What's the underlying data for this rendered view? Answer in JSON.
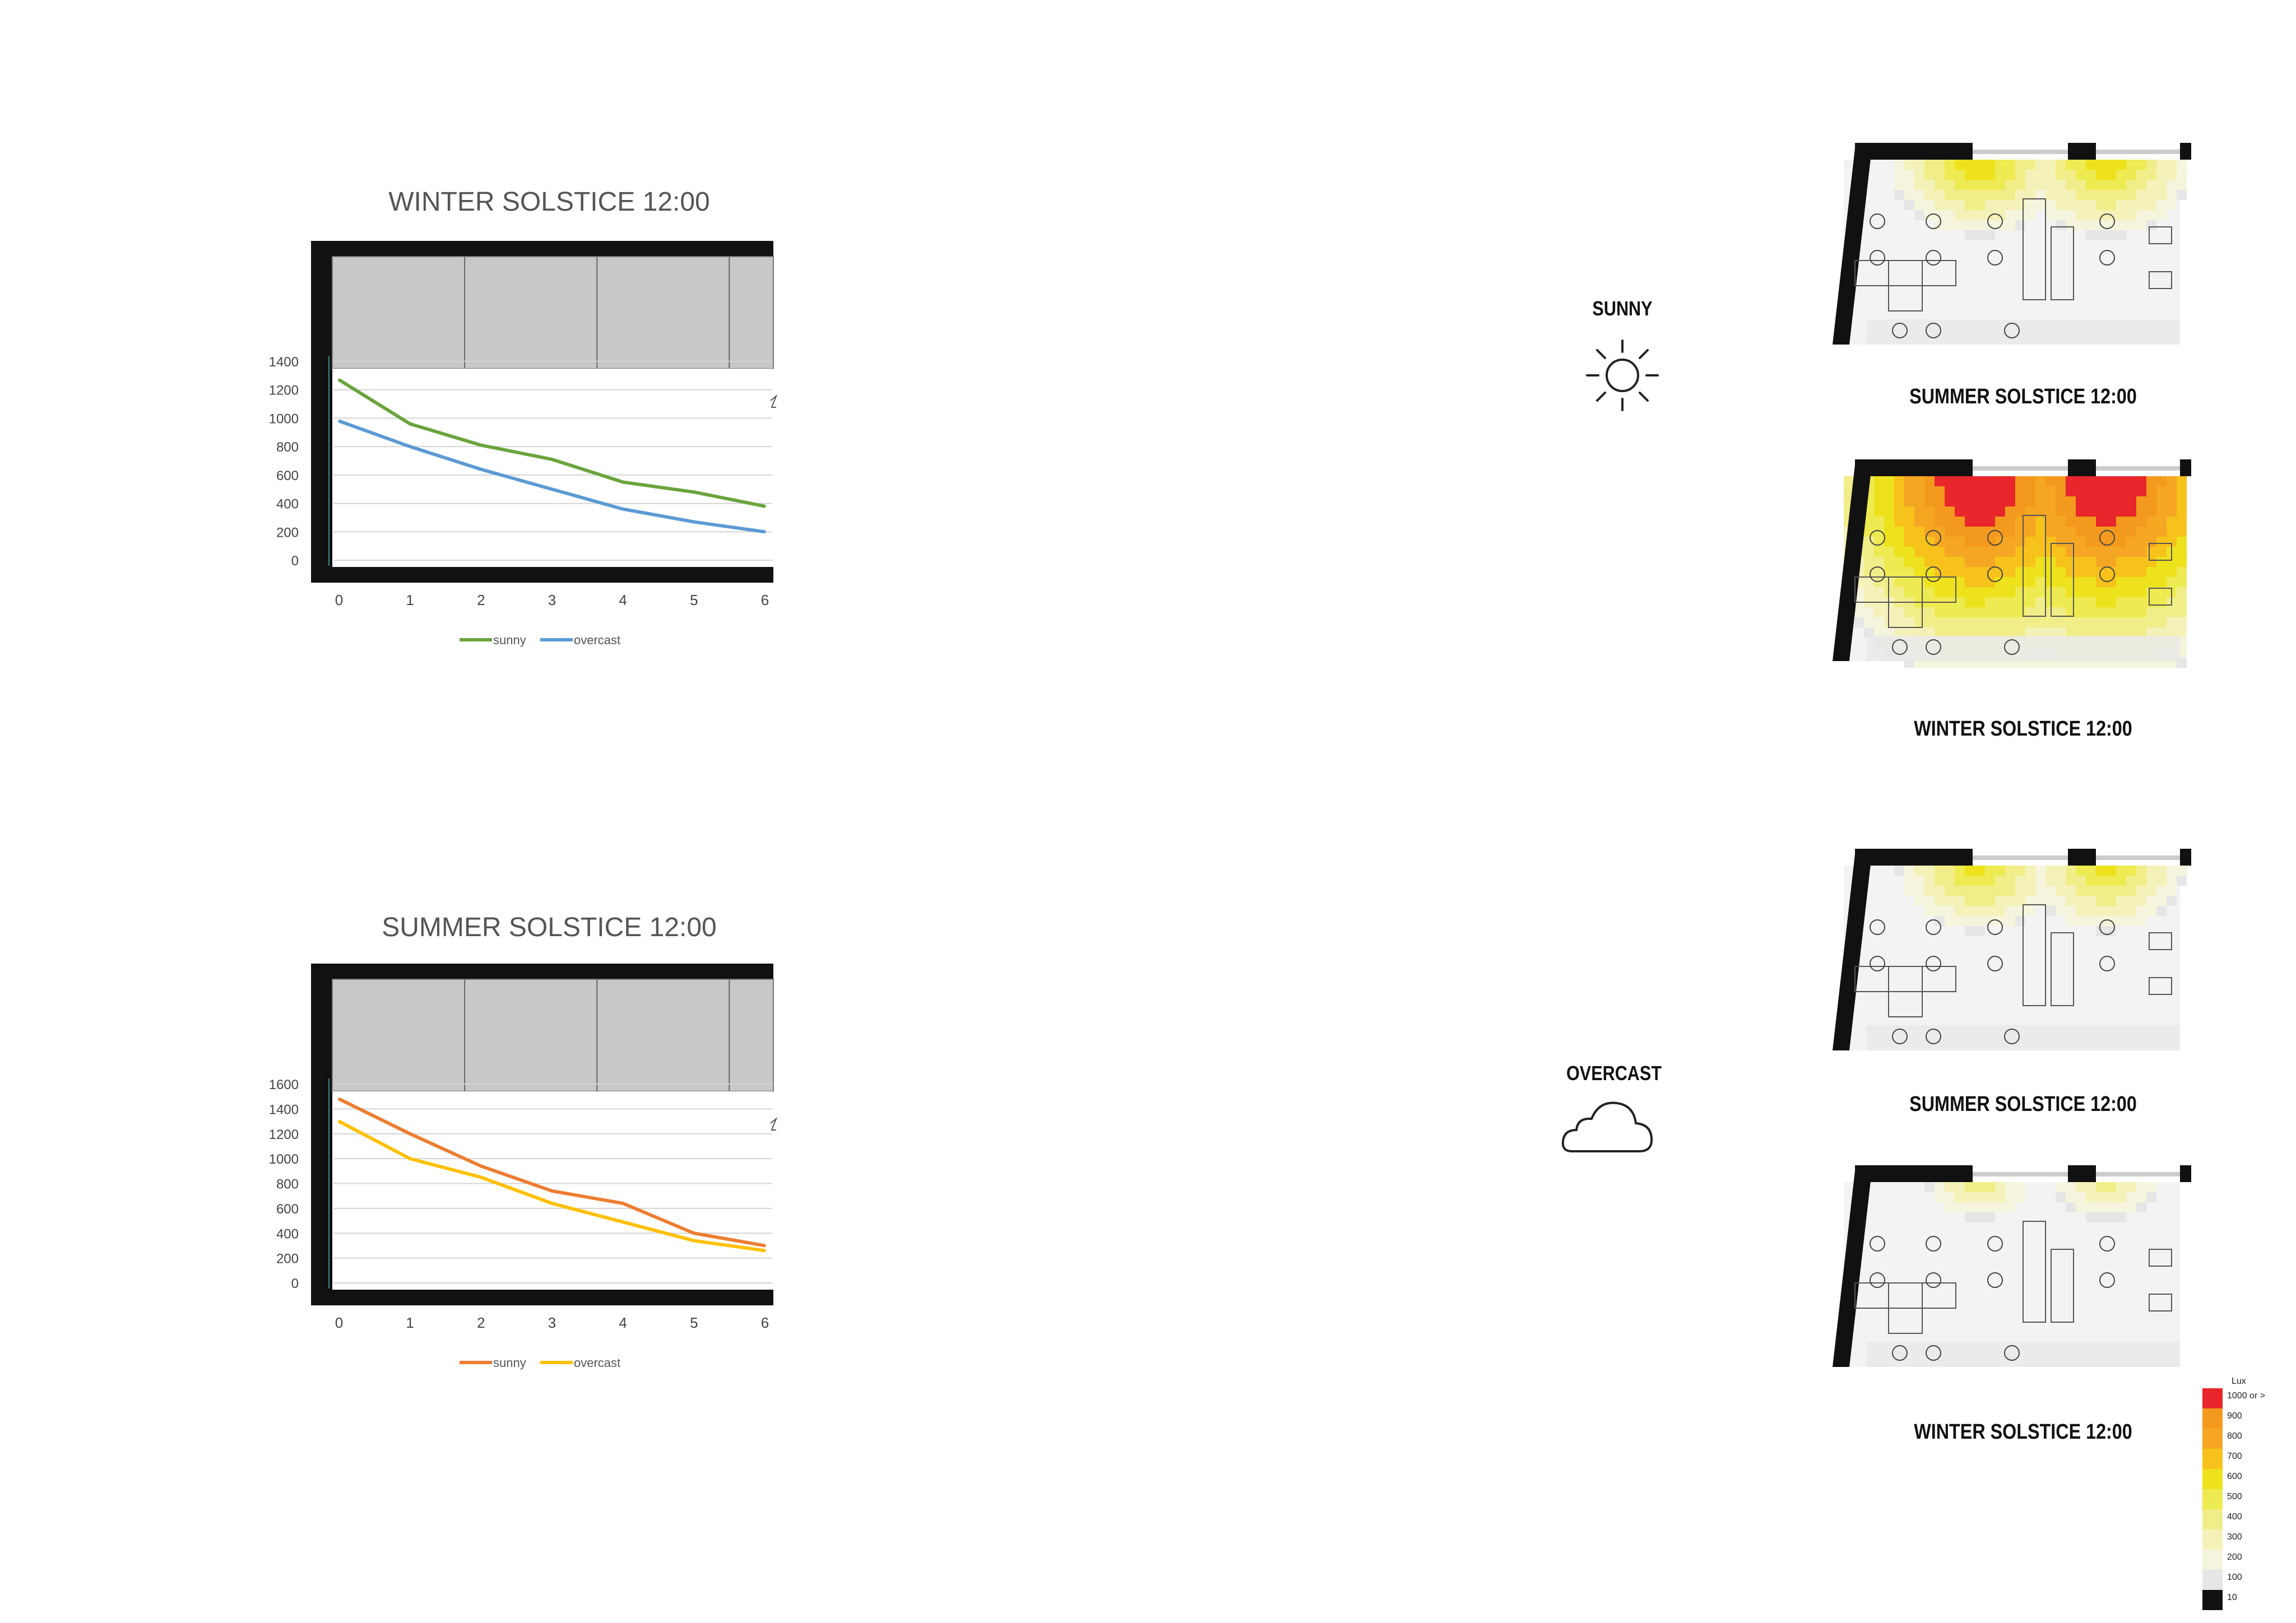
{
  "colors": {
    "sunny_winter": "#6aa43c",
    "overcast_winter": "#5b9bd5",
    "sunny_summer": "#ed7d31",
    "overcast_summer": "#ffc000",
    "wall": "#111111",
    "panel": "#c8c8c8"
  },
  "chart_data": [
    {
      "type": "line",
      "title": "WINTER SOLSTICE 12:00",
      "x": [
        0,
        1,
        2,
        3,
        4,
        5,
        6
      ],
      "x_ticks": [
        "0",
        "1",
        "2",
        "3",
        "4",
        "5",
        "6"
      ],
      "y_ticks": [
        "0",
        "200",
        "400",
        "600",
        "800",
        "1000",
        "1200",
        "1400"
      ],
      "ylim": [
        0,
        1400
      ],
      "grid": true,
      "legend": "bottom",
      "series": [
        {
          "name": "sunny",
          "color": "#6aa43c",
          "values": [
            1270,
            960,
            810,
            710,
            550,
            480,
            380
          ]
        },
        {
          "name": "overcast",
          "color": "#5b9bd5",
          "values": [
            980,
            800,
            640,
            500,
            360,
            270,
            200
          ]
        }
      ]
    },
    {
      "type": "line",
      "title": "SUMMER SOLSTICE 12:00",
      "x": [
        0,
        1,
        2,
        3,
        4,
        5,
        6
      ],
      "x_ticks": [
        "0",
        "1",
        "2",
        "3",
        "4",
        "5",
        "6"
      ],
      "y_ticks": [
        "0",
        "200",
        "400",
        "600",
        "800",
        "1000",
        "1200",
        "1400",
        "1600"
      ],
      "ylim": [
        0,
        1600
      ],
      "grid": true,
      "legend": "bottom",
      "series": [
        {
          "name": "sunny",
          "color": "#ed7d31",
          "values": [
            1480,
            1200,
            940,
            740,
            640,
            400,
            300
          ]
        },
        {
          "name": "overcast",
          "color": "#ffc000",
          "values": [
            1300,
            1000,
            850,
            640,
            490,
            340,
            260
          ]
        }
      ]
    }
  ],
  "conditions": {
    "sunny": "SUNNY",
    "overcast": "OVERCAST"
  },
  "plans": [
    {
      "caption": "SUMMER SOLSTICE 12:00",
      "condition": "sunny",
      "intensity": 0.55
    },
    {
      "caption": "WINTER SOLSTICE 12:00",
      "condition": "sunny",
      "intensity": 1.0
    },
    {
      "caption": "SUMMER SOLSTICE 12:00",
      "condition": "overcast",
      "intensity": 0.5
    },
    {
      "caption": "WINTER SOLSTICE 12:00",
      "condition": "overcast",
      "intensity": 0.35
    }
  ],
  "lux_legend": {
    "title": "Lux",
    "items": [
      {
        "label": "1000 or >",
        "color": "#e8262b"
      },
      {
        "label": "900",
        "color": "#f39a1e"
      },
      {
        "label": "800",
        "color": "#f5a623"
      },
      {
        "label": "700",
        "color": "#f7c21b"
      },
      {
        "label": "600",
        "color": "#eee21c"
      },
      {
        "label": "500",
        "color": "#eeea52"
      },
      {
        "label": "400",
        "color": "#f1ee8a"
      },
      {
        "label": "300",
        "color": "#f4f2b8"
      },
      {
        "label": "200",
        "color": "#f5f4dd"
      },
      {
        "label": "100",
        "color": "#e6e6e6"
      },
      {
        "label": "10",
        "color": "#111111"
      }
    ]
  }
}
